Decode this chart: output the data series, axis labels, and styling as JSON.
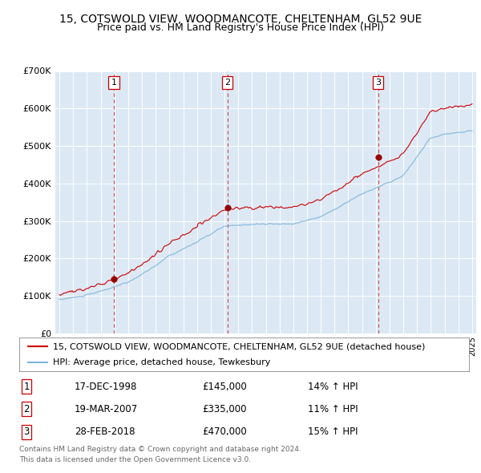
{
  "title": "15, COTSWOLD VIEW, WOODMANCOTE, CHELTENHAM, GL52 9UE",
  "subtitle": "Price paid vs. HM Land Registry's House Price Index (HPI)",
  "legend_line1": "15, COTSWOLD VIEW, WOODMANCOTE, CHELTENHAM, GL52 9UE (detached house)",
  "legend_line2": "HPI: Average price, detached house, Tewkesbury",
  "sales": [
    {
      "label": "1",
      "date_str": "17-DEC-1998",
      "date_num": 1998.96,
      "price": 145000,
      "pct": "14% ↑ HPI"
    },
    {
      "label": "2",
      "date_str": "19-MAR-2007",
      "date_num": 2007.21,
      "price": 335000,
      "pct": "11% ↑ HPI"
    },
    {
      "label": "3",
      "date_str": "28-FEB-2018",
      "date_num": 2018.16,
      "price": 470000,
      "pct": "15% ↑ HPI"
    }
  ],
  "prices": [
    "£145,000",
    "£335,000",
    "£470,000"
  ],
  "footer1": "Contains HM Land Registry data © Crown copyright and database right 2024.",
  "footer2": "This data is licensed under the Open Government Licence v3.0.",
  "ylim": [
    0,
    700000
  ],
  "xlim_start": 1994.7,
  "xlim_end": 2025.3,
  "yticks": [
    0,
    100000,
    200000,
    300000,
    400000,
    500000,
    600000,
    700000
  ],
  "ytick_labels": [
    "£0",
    "£100K",
    "£200K",
    "£300K",
    "£400K",
    "£500K",
    "£600K",
    "£700K"
  ],
  "plot_bg_color": "#dce9f5",
  "red_line_color": "#cc0000",
  "blue_line_color": "#7db4d8",
  "sale_dot_color": "#990000",
  "vline_color": "#cc0000",
  "box_edge_color": "#cc0000",
  "grid_color": "#ffffff",
  "title_fontsize": 10,
  "subtitle_fontsize": 9,
  "tick_fontsize": 8,
  "legend_fontsize": 8
}
